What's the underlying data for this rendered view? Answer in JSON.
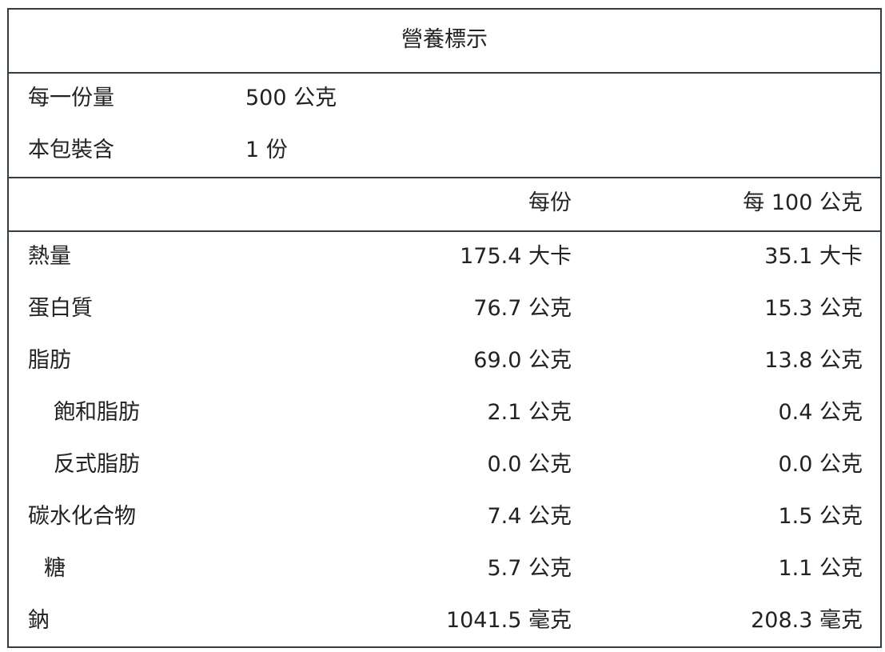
{
  "title": "營養標示",
  "serving": [
    {
      "label": "每一份量",
      "value": "500 公克"
    },
    {
      "label": "本包裝含",
      "value": "1 份"
    }
  ],
  "columns": [
    "每份",
    "每 100 公克"
  ],
  "rows": [
    {
      "name": "熱量",
      "indent": 0,
      "per_serving": "175.4 大卡",
      "per_100g": "35.1 大卡"
    },
    {
      "name": "蛋白質",
      "indent": 0,
      "per_serving": "76.7 公克",
      "per_100g": "15.3 公克"
    },
    {
      "name": "脂肪",
      "indent": 0,
      "per_serving": "69.0 公克",
      "per_100g": "13.8 公克"
    },
    {
      "name": "飽和脂肪",
      "indent": 2,
      "per_serving": "2.1 公克",
      "per_100g": "0.4 公克"
    },
    {
      "name": "反式脂肪",
      "indent": 2,
      "per_serving": "0.0 公克",
      "per_100g": "0.0 公克"
    },
    {
      "name": "碳水化合物",
      "indent": 0,
      "per_serving": "7.4 公克",
      "per_100g": "1.5 公克"
    },
    {
      "name": "糖",
      "indent": 1,
      "per_serving": "5.7 公克",
      "per_100g": "1.1 公克"
    },
    {
      "name": "鈉",
      "indent": 0,
      "per_serving": "1041.5 毫克",
      "per_100g": "208.3 毫克"
    }
  ]
}
